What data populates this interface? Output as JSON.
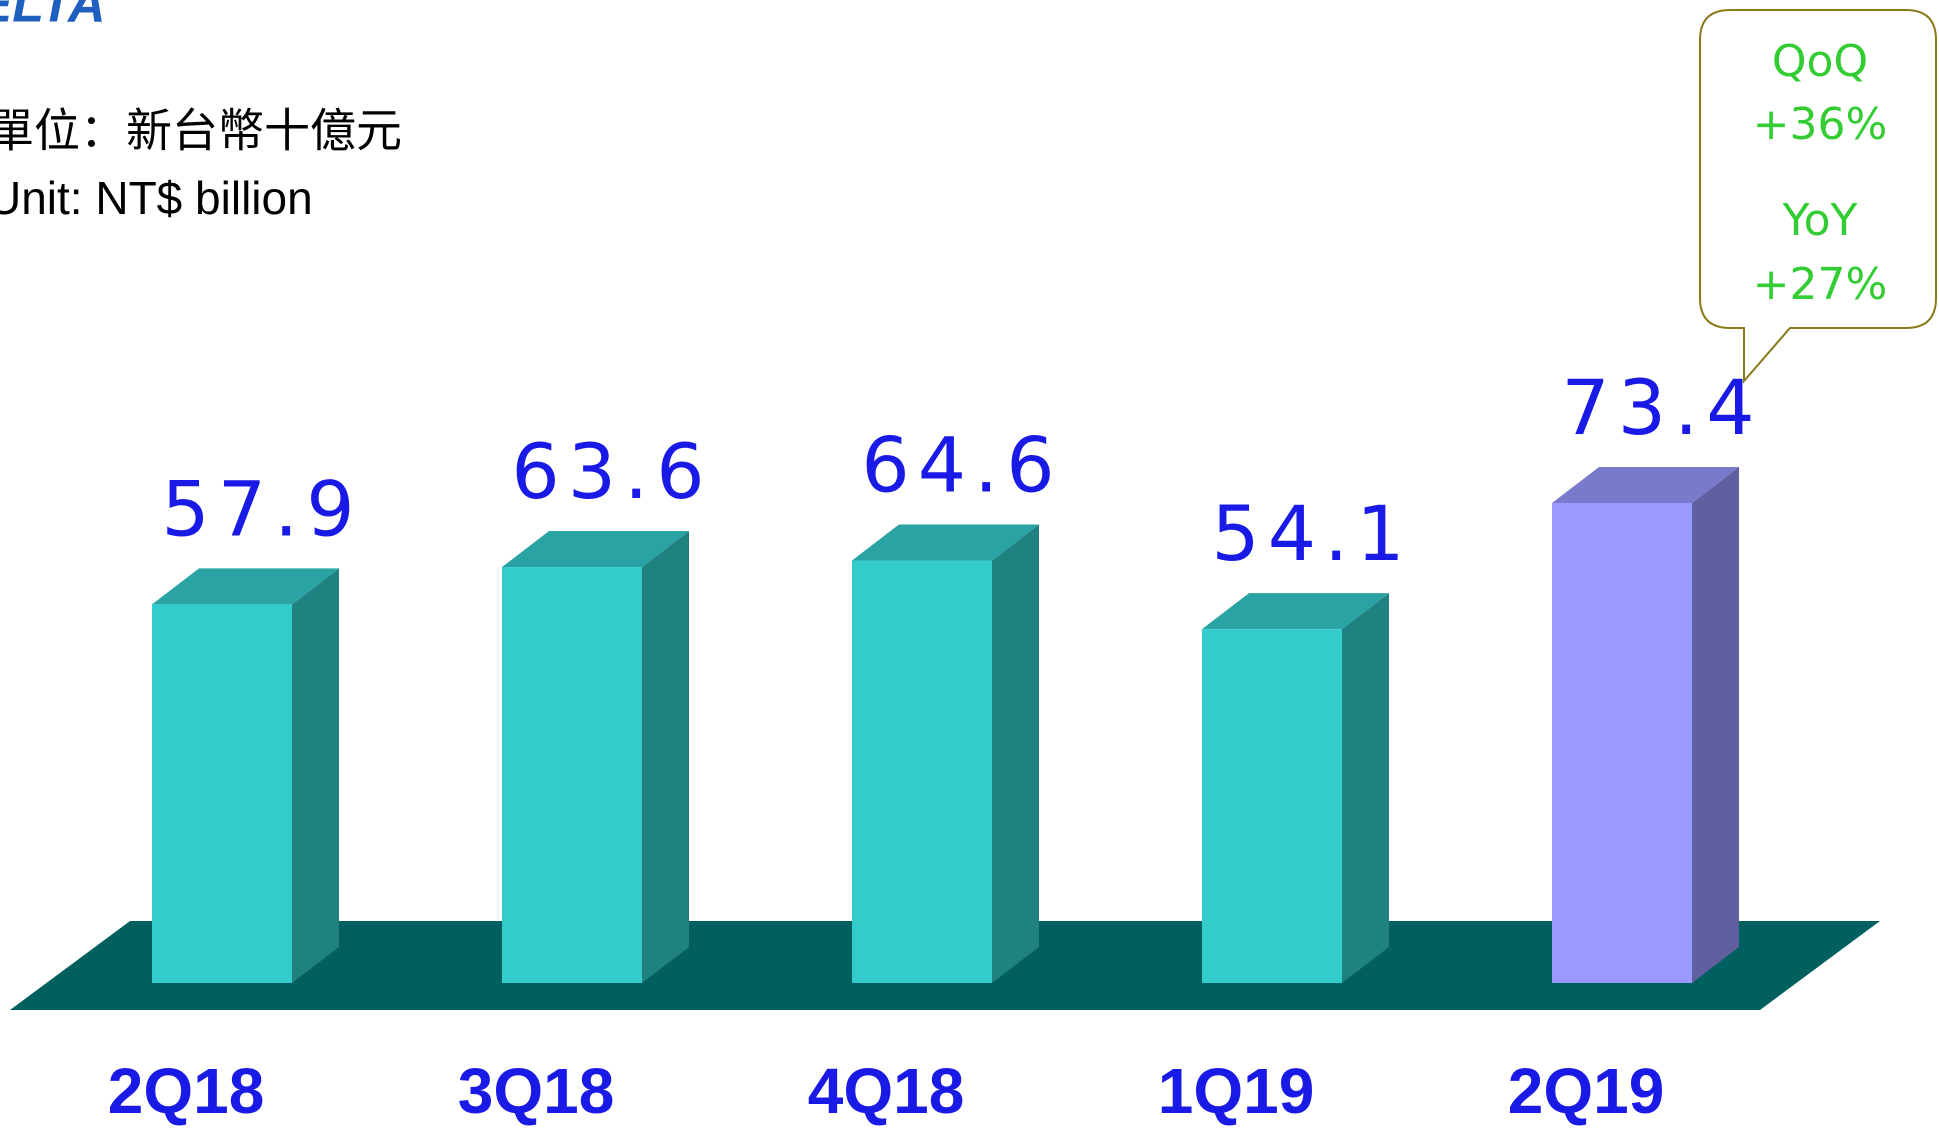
{
  "logo": "DELTA",
  "unit_zh": "單位：新台幣十億元",
  "unit_en": "Unit: NT$ billion",
  "callout": {
    "lines": [
      "QoQ",
      "+36%",
      "YoY",
      "+27%"
    ]
  },
  "chart_data": {
    "type": "bar3d",
    "categories": [
      "2Q18",
      "3Q18",
      "4Q18",
      "1Q19",
      "2Q19"
    ],
    "values": [
      57.9,
      63.6,
      64.6,
      54.1,
      73.4
    ],
    "colors": [
      "#33cccc",
      "#33cccc",
      "#33cccc",
      "#33cccc",
      "#9999ff"
    ],
    "floor_color": "#006060"
  }
}
